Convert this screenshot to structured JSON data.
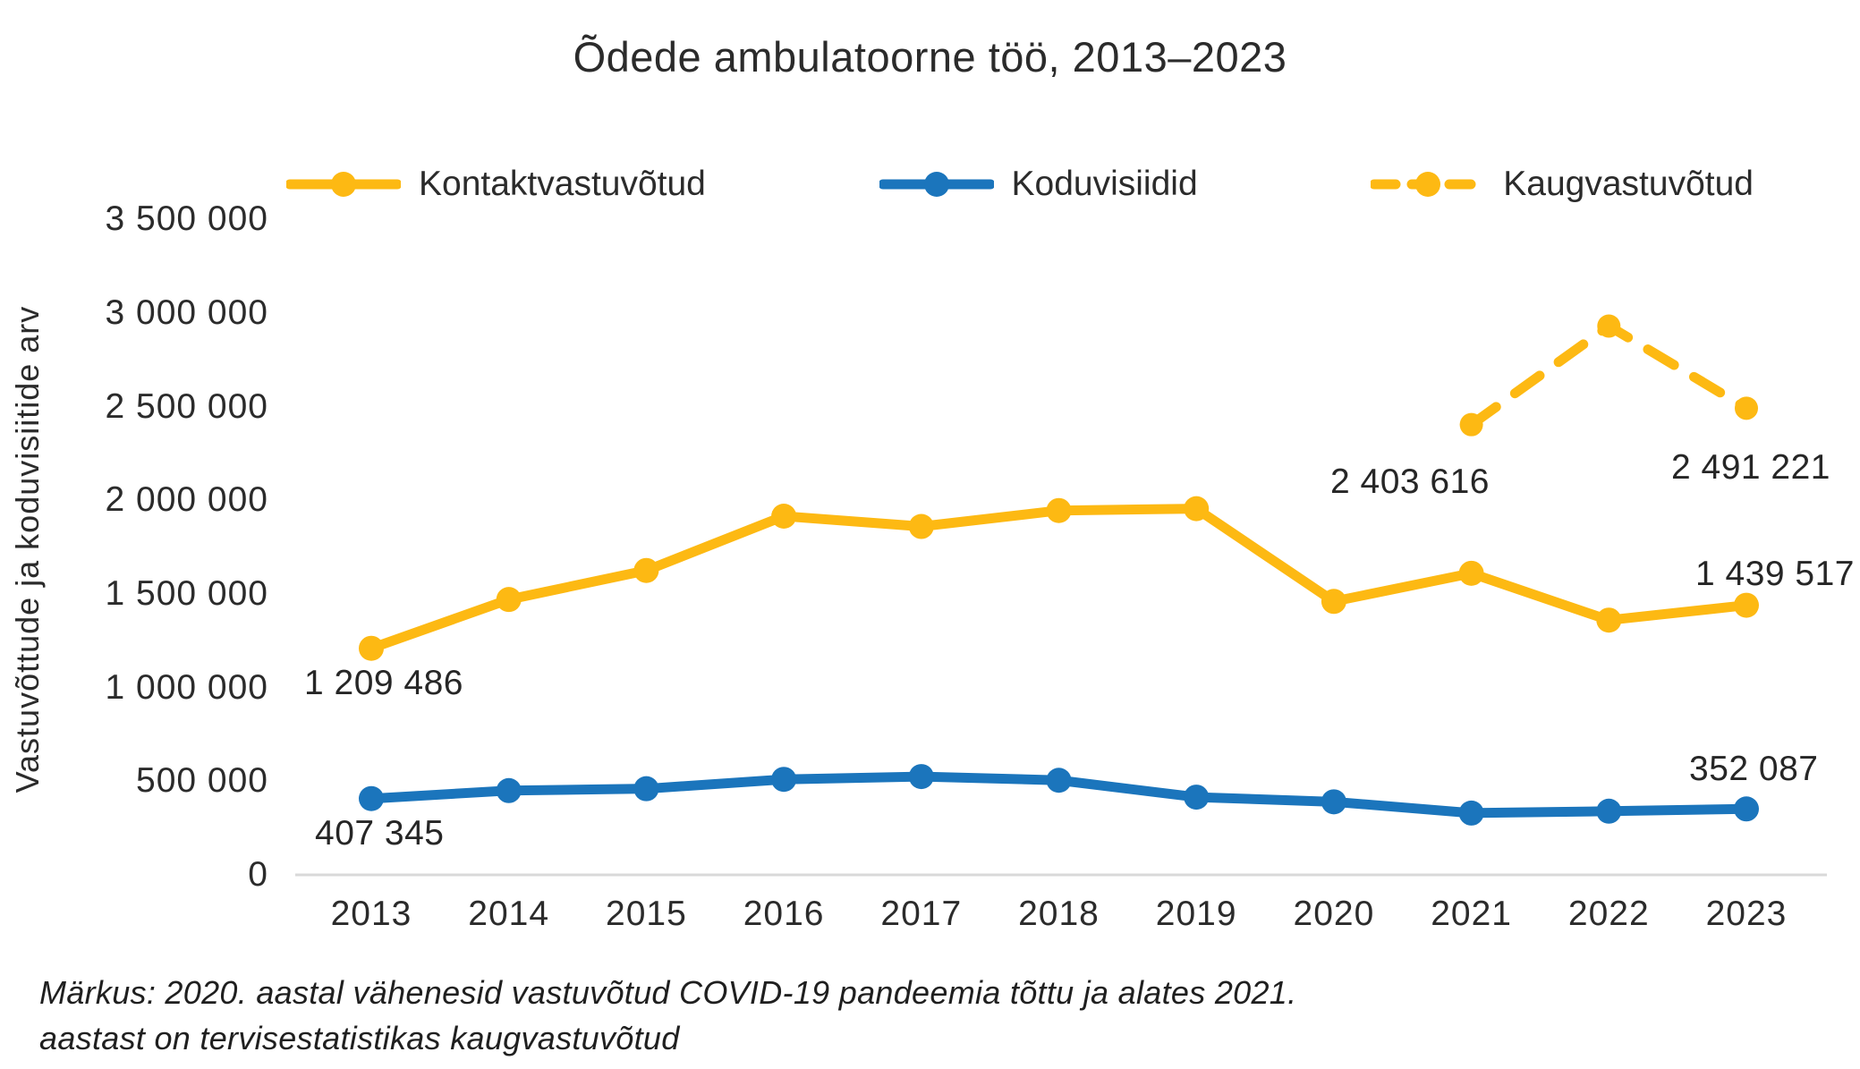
{
  "note": "Märkus: 2020. aastal vähenesid vastuvõtud COVID-19 pandeemia tõttu ja alates 2021.\naastast on tervisestatistikas kaugvastuvõtud",
  "axis_line_color": "#d9d9d9",
  "chart_data": {
    "type": "line",
    "title": "Õdede ambulatoorne töö, 2013–2023",
    "ylabel": "Vastuvõttude ja koduvisiitide arv",
    "xlabel": "",
    "categories": [
      "2013",
      "2014",
      "2015",
      "2016",
      "2017",
      "2018",
      "2019",
      "2020",
      "2021",
      "2022",
      "2023"
    ],
    "ylim": [
      0,
      3500000
    ],
    "ytick_values": [
      0,
      500000,
      1000000,
      1500000,
      2000000,
      2500000,
      3000000,
      3500000
    ],
    "ytick_labels": [
      "0",
      "500 000",
      "1 000 000",
      "1 500 000",
      "2 000 000",
      "2 500 000",
      "3 000 000",
      "3 500 000"
    ],
    "grid": false,
    "legend_position": "top",
    "series": [
      {
        "name": "Kontaktvastuvõtud",
        "color": "#FDB913",
        "line_style": "solid",
        "values": [
          1209486,
          1470000,
          1625000,
          1915000,
          1860000,
          1945000,
          1955000,
          1460000,
          1610000,
          1360000,
          1439517
        ]
      },
      {
        "name": "Koduvisiidid",
        "color": "#1B75BC",
        "line_style": "solid",
        "values": [
          407345,
          450000,
          460000,
          510000,
          525000,
          505000,
          415000,
          390000,
          330000,
          340000,
          352087
        ]
      },
      {
        "name": "Kaugvastuvõtud",
        "color": "#FDB913",
        "line_style": "dashed",
        "values": [
          null,
          null,
          null,
          null,
          null,
          null,
          null,
          null,
          2403616,
          2930000,
          2491221
        ]
      }
    ],
    "annotations": {
      "kontakt_2013": "1 209 486",
      "kodu_2013": "407 345",
      "kaug_2021": "2 403 616",
      "kaug_2023": "2 491 221",
      "kontakt_2023": "1 439 517",
      "kodu_2023": "352 087"
    }
  }
}
